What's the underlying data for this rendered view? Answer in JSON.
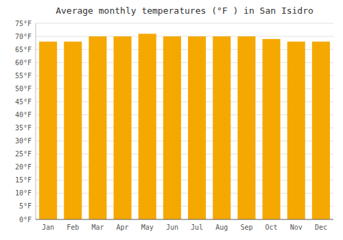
{
  "chart_data": {
    "type": "bar",
    "title": "Average monthly temperatures (°F ) in San Isidro",
    "categories": [
      "Jan",
      "Feb",
      "Mar",
      "Apr",
      "May",
      "Jun",
      "Jul",
      "Aug",
      "Sep",
      "Oct",
      "Nov",
      "Dec"
    ],
    "values": [
      68,
      68,
      70,
      70,
      71,
      70,
      70,
      70,
      70,
      69,
      68,
      68
    ],
    "color": "#F5A800",
    "ylim": [
      0,
      75
    ],
    "yticks": [
      {
        "value": 0,
        "label": "0°F"
      },
      {
        "value": 5,
        "label": "5°F"
      },
      {
        "value": 10,
        "label": "10°F"
      },
      {
        "value": 15,
        "label": "15°F"
      },
      {
        "value": 20,
        "label": "20°F"
      },
      {
        "value": 25,
        "label": "25°F"
      },
      {
        "value": 30,
        "label": "30°F"
      },
      {
        "value": 35,
        "label": "35°F"
      },
      {
        "value": 40,
        "label": "40°F"
      },
      {
        "value": 45,
        "label": "45°F"
      },
      {
        "value": 50,
        "label": "50°F"
      },
      {
        "value": 55,
        "label": "55°F"
      },
      {
        "value": 60,
        "label": "60°F"
      },
      {
        "value": 65,
        "label": "65°F"
      },
      {
        "value": 70,
        "label": "70°F"
      },
      {
        "value": 75,
        "label": "75°F"
      }
    ],
    "grid": true
  }
}
